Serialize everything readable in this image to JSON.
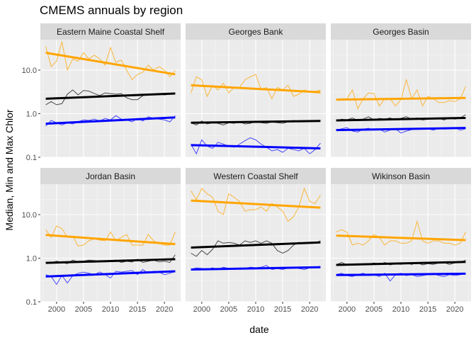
{
  "chart_data": {
    "type": "line",
    "title": "CMEMS annuals by region",
    "xlabel": "date",
    "ylabel": "Median, Min and Max Chlor",
    "y_scale": "log10",
    "ylim": [
      0.1,
      50
    ],
    "xlim": [
      1997,
      2023
    ],
    "x_ticks": [
      2000,
      2005,
      2010,
      2015,
      2020
    ],
    "x_tick_labels": [
      "2000",
      "2005",
      "2010",
      "2015",
      "2020"
    ],
    "y_ticks": [
      0.1,
      1,
      10
    ],
    "y_tick_labels": [
      "0.1",
      "1.0",
      "10.0"
    ],
    "grid": true,
    "legend": "none",
    "years": [
      1998,
      1999,
      2000,
      2001,
      2002,
      2003,
      2004,
      2005,
      2006,
      2007,
      2008,
      2009,
      2010,
      2011,
      2012,
      2013,
      2014,
      2015,
      2016,
      2017,
      2018,
      2019,
      2020,
      2021,
      2022
    ],
    "colors": {
      "max": "#FFA500",
      "median": "#000000",
      "min": "#0000FF"
    },
    "panels": [
      {
        "region": "Eastern Maine Coastal Shelf",
        "max": [
          35,
          12,
          16,
          45,
          10,
          18,
          16,
          25,
          18,
          22,
          18,
          13,
          33,
          15,
          17,
          10,
          6,
          8,
          9,
          13,
          10,
          12,
          10,
          7,
          10
        ],
        "median": [
          1.6,
          1.9,
          1.6,
          1.7,
          2.8,
          3.5,
          2.7,
          3.4,
          3.3,
          2.9,
          2.6,
          3.0,
          2.9,
          2.8,
          2.9,
          2.3,
          2.1,
          2.1,
          2.6,
          2.8,
          2.7,
          2.8,
          2.7,
          2.8,
          3.0
        ],
        "min": [
          0.52,
          0.7,
          0.62,
          0.55,
          0.62,
          0.58,
          0.65,
          0.72,
          0.7,
          0.75,
          0.68,
          0.78,
          0.72,
          0.9,
          0.75,
          0.72,
          0.65,
          0.78,
          0.68,
          0.85,
          0.78,
          0.75,
          0.72,
          0.65,
          0.9
        ],
        "trend": {
          "max": [
            25,
            8
          ],
          "median": [
            2.2,
            2.9
          ],
          "min": [
            0.59,
            0.82
          ]
        }
      },
      {
        "region": "Georges Bank",
        "max": [
          3,
          7,
          6,
          2.5,
          4.5,
          3.5,
          5,
          3,
          4,
          4,
          6,
          7,
          8,
          3.5,
          4,
          2.2,
          4,
          3.5,
          4.5,
          2.5,
          2.8,
          3.5,
          3.2,
          3.2,
          3.5
        ],
        "median": [
          0.62,
          0.55,
          0.68,
          0.58,
          0.62,
          0.6,
          0.55,
          0.62,
          0.6,
          0.65,
          0.58,
          0.6,
          0.68,
          0.62,
          0.6,
          0.65,
          0.62,
          0.6,
          0.65,
          0.7,
          0.65,
          0.68,
          0.7,
          0.68,
          0.7
        ],
        "min": [
          0.2,
          0.12,
          0.25,
          0.18,
          0.16,
          0.22,
          0.2,
          0.18,
          0.17,
          0.2,
          0.24,
          0.28,
          0.25,
          0.2,
          0.17,
          0.14,
          0.15,
          0.13,
          0.16,
          0.15,
          0.14,
          0.16,
          0.12,
          0.15,
          0.21
        ],
        "trend": {
          "max": [
            4.5,
            3.1
          ],
          "median": [
            0.62,
            0.68
          ],
          "min": [
            0.19,
            0.16
          ]
        }
      },
      {
        "region": "Georges Basin",
        "max": [
          2,
          2.2,
          2.2,
          3.5,
          1.3,
          2.2,
          3,
          2.9,
          1.5,
          2.2,
          2.2,
          1.5,
          2.1,
          6,
          2.2,
          3.5,
          1.5,
          2.5,
          2.2,
          1.8,
          1.8,
          2,
          1.9,
          2.2,
          4.2
        ],
        "median": [
          0.68,
          0.75,
          0.72,
          0.8,
          0.7,
          0.75,
          0.85,
          0.72,
          0.78,
          0.75,
          0.8,
          0.72,
          0.78,
          0.85,
          0.75,
          0.8,
          0.72,
          0.75,
          0.8,
          0.78,
          0.72,
          0.8,
          0.75,
          0.8,
          0.95
        ],
        "min": [
          0.42,
          0.45,
          0.48,
          0.4,
          0.38,
          0.44,
          0.46,
          0.42,
          0.44,
          0.38,
          0.42,
          0.45,
          0.36,
          0.4,
          0.43,
          0.46,
          0.44,
          0.45,
          0.42,
          0.46,
          0.44,
          0.45,
          0.48,
          0.42,
          0.45
        ],
        "trend": {
          "max": [
            2.1,
            2.3
          ],
          "median": [
            0.7,
            0.8
          ],
          "min": [
            0.42,
            0.47
          ]
        }
      },
      {
        "region": "Jordan Basin",
        "max": [
          4.5,
          3,
          5.5,
          4.8,
          3,
          3.2,
          1.9,
          2,
          2.5,
          2.8,
          2.6,
          2.5,
          4,
          2.5,
          3,
          3.5,
          2,
          2,
          2,
          3.5,
          2.5,
          2.2,
          2,
          2,
          4
        ],
        "median": [
          0.8,
          0.78,
          0.85,
          0.8,
          0.75,
          0.9,
          0.82,
          0.85,
          0.9,
          0.88,
          0.85,
          0.82,
          0.88,
          0.9,
          0.8,
          0.85,
          0.82,
          0.95,
          0.8,
          0.85,
          0.9,
          0.82,
          0.85,
          0.8,
          1.2
        ],
        "min": [
          0.42,
          0.38,
          0.25,
          0.4,
          0.27,
          0.4,
          0.45,
          0.48,
          0.45,
          0.42,
          0.48,
          0.42,
          0.35,
          0.5,
          0.48,
          0.5,
          0.52,
          0.42,
          0.55,
          0.45,
          0.5,
          0.48,
          0.42,
          0.45,
          0.5
        ],
        "trend": {
          "max": [
            3.4,
            2.1
          ],
          "median": [
            0.78,
            0.95
          ],
          "min": [
            0.38,
            0.5
          ]
        }
      },
      {
        "region": "Western Coastal Shelf",
        "max": [
          35,
          22,
          40,
          30,
          25,
          12,
          10,
          30,
          25,
          20,
          12,
          13,
          13,
          15,
          12,
          18,
          15,
          12,
          7,
          9,
          15,
          40,
          20,
          18,
          28
        ],
        "median": [
          1.3,
          1.1,
          1.5,
          1.2,
          1.6,
          2.5,
          2.2,
          2.3,
          2.2,
          2.0,
          2.5,
          2.3,
          2.5,
          2.2,
          2.5,
          2.2,
          1.5,
          1.3,
          1.5,
          2.0,
          2.3,
          2.2,
          2.3,
          2.2,
          2.5
        ],
        "min": [
          0.55,
          0.6,
          0.58,
          0.55,
          0.6,
          0.55,
          0.62,
          0.58,
          0.55,
          0.6,
          0.58,
          0.62,
          0.6,
          0.62,
          0.68,
          0.55,
          0.58,
          0.55,
          0.6,
          0.62,
          0.58,
          0.55,
          0.6,
          0.62,
          0.65
        ],
        "trend": {
          "max": [
            21,
            14.5
          ],
          "median": [
            1.75,
            2.3
          ],
          "min": [
            0.55,
            0.62
          ]
        }
      },
      {
        "region": "Wikinson Basin",
        "max": [
          4,
          4.5,
          4,
          2,
          2.2,
          2,
          2.5,
          3.5,
          3,
          2,
          2.5,
          2.5,
          2.2,
          2.2,
          2.5,
          7,
          2.5,
          2.2,
          2.5,
          2.5,
          2.2,
          2.2,
          2,
          2.2,
          4
        ],
        "median": [
          0.7,
          0.8,
          0.7,
          0.72,
          0.75,
          0.7,
          0.72,
          0.78,
          0.72,
          0.8,
          0.7,
          0.75,
          0.72,
          0.78,
          0.72,
          0.8,
          0.7,
          0.75,
          0.72,
          0.78,
          0.8,
          0.72,
          0.78,
          0.8,
          0.9
        ],
        "min": [
          0.42,
          0.45,
          0.4,
          0.38,
          0.42,
          0.45,
          0.4,
          0.42,
          0.38,
          0.45,
          0.3,
          0.42,
          0.45,
          0.4,
          0.42,
          0.38,
          0.4,
          0.42,
          0.45,
          0.4,
          0.38,
          0.42,
          0.4,
          0.42,
          0.45
        ],
        "trend": {
          "max": [
            3.3,
            2.6
          ],
          "median": [
            0.7,
            0.82
          ],
          "min": [
            0.41,
            0.44
          ]
        }
      }
    ]
  }
}
